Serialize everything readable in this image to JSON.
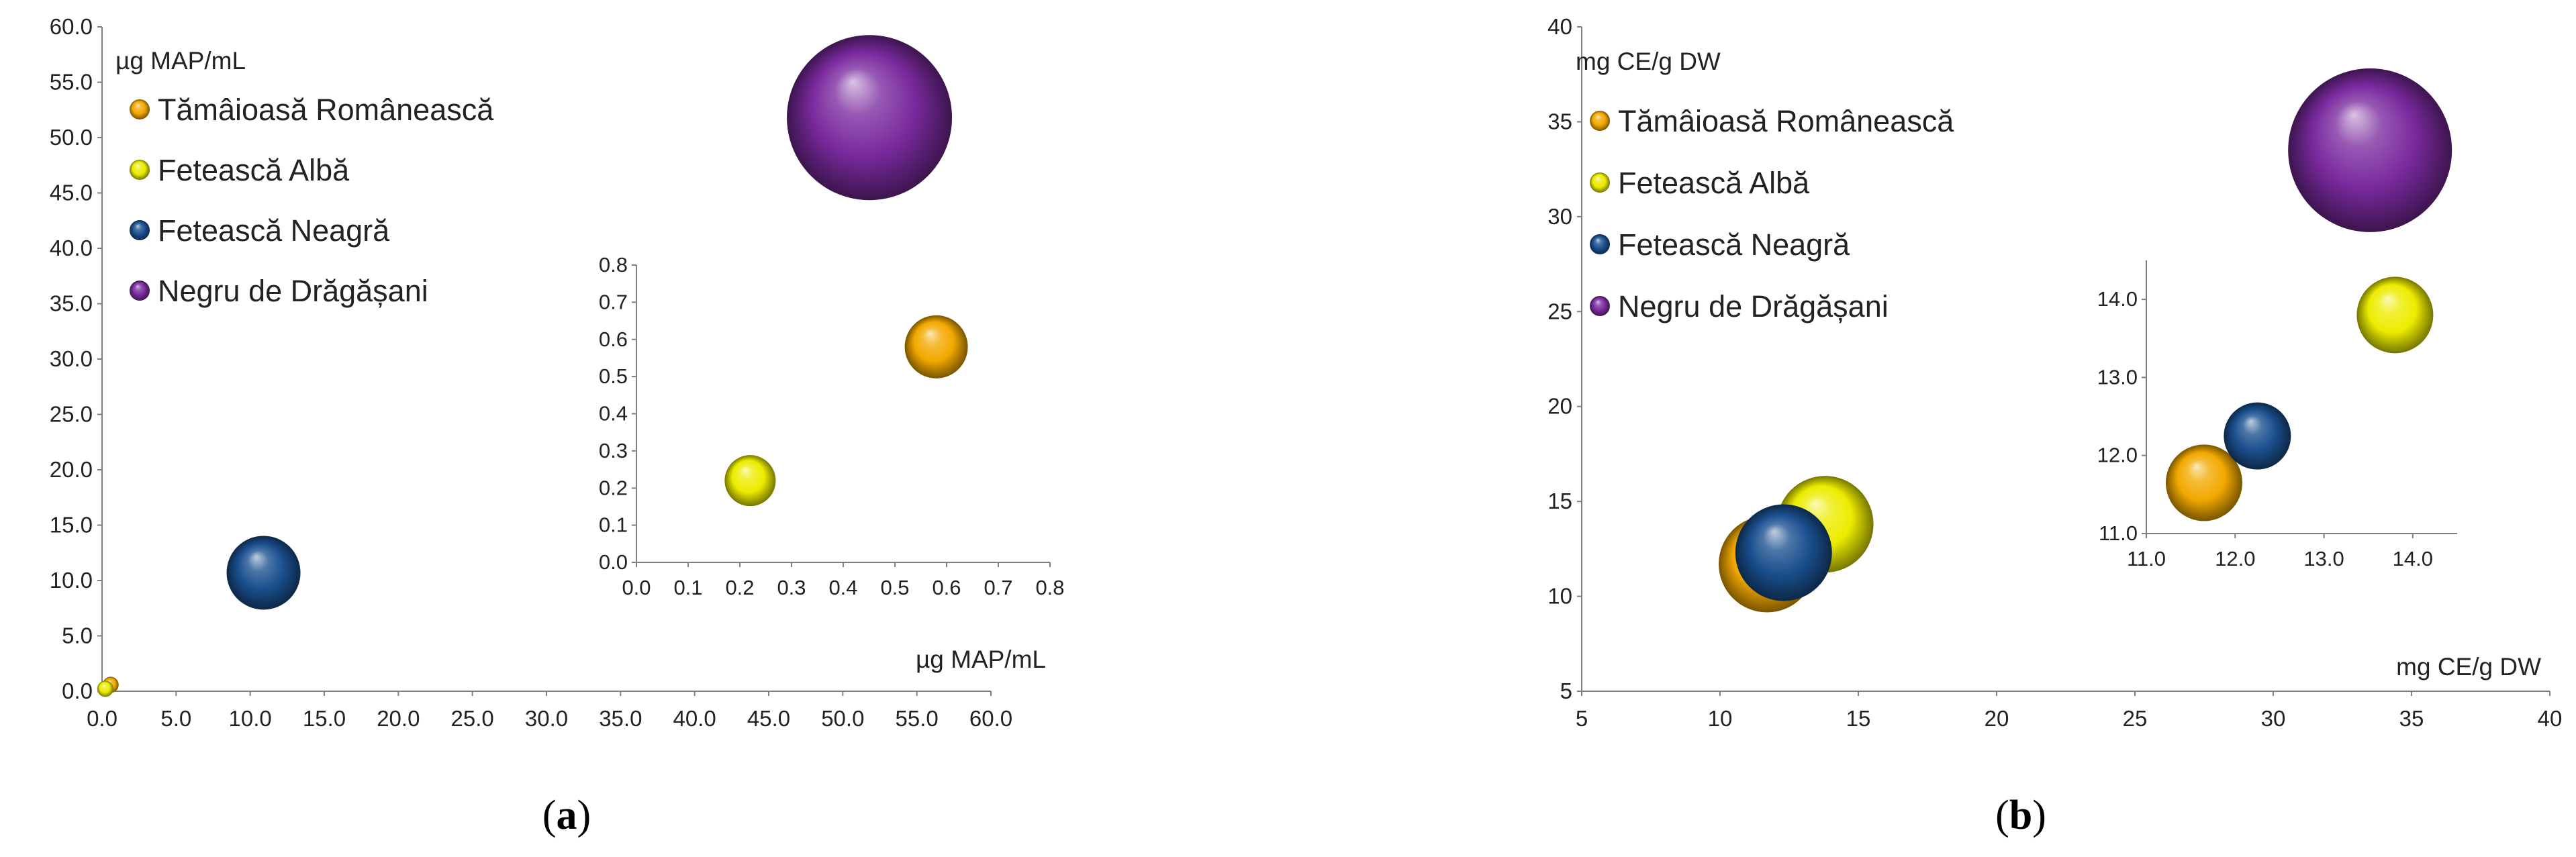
{
  "colors": {
    "Tămâioasă Românească": "#f2a900",
    "Fetească Albă": "#ecec00",
    "Fetească Neagră": "#1a4f8e",
    "Negru de Drăgășani": "#7a2a9e",
    "axis": "#7f7f7f",
    "text": "#222222"
  },
  "chart_data": [
    {
      "panel": "a",
      "type": "scatter",
      "subtype": "bubble",
      "title": "",
      "ylabel": "µg MAP/mL",
      "xlabel": "µg MAP/mL",
      "xlim": [
        0,
        60
      ],
      "ylim": [
        0,
        60
      ],
      "xticks": [
        "0.0",
        "5.0",
        "10.0",
        "15.0",
        "20.0",
        "25.0",
        "30.0",
        "35.0",
        "40.0",
        "45.0",
        "50.0",
        "55.0",
        "60.0"
      ],
      "yticks": [
        "0.0",
        "5.0",
        "10.0",
        "15.0",
        "20.0",
        "25.0",
        "30.0",
        "35.0",
        "40.0",
        "45.0",
        "50.0",
        "55.0",
        "60.0"
      ],
      "legend": {
        "position": "top-left",
        "entries": [
          "Tămâioasă Românească",
          "Fetească Albă",
          "Fetească Neagră",
          "Negru de Drăgășani"
        ]
      },
      "series": [
        {
          "name": "Tămâioasă Românească",
          "x": 0.58,
          "y": 0.58
        },
        {
          "name": "Fetească Albă",
          "x": 0.22,
          "y": 0.22
        },
        {
          "name": "Fetească Neagră",
          "x": 10.9,
          "y": 10.7
        },
        {
          "name": "Negru de Drăgășani",
          "x": 51.8,
          "y": 51.8
        }
      ],
      "inset": {
        "xlim": [
          0,
          0.8
        ],
        "ylim": [
          0,
          0.8
        ],
        "xticks": [
          "0.0",
          "0.1",
          "0.2",
          "0.3",
          "0.4",
          "0.5",
          "0.6",
          "0.7",
          "0.8"
        ],
        "yticks": [
          "0.0",
          "0.1",
          "0.2",
          "0.3",
          "0.4",
          "0.5",
          "0.6",
          "0.7",
          "0.8"
        ],
        "series": [
          {
            "name": "Tămâioasă Românească",
            "x": 0.58,
            "y": 0.58
          },
          {
            "name": "Fetească Albă",
            "x": 0.22,
            "y": 0.22
          }
        ]
      }
    },
    {
      "panel": "b",
      "type": "scatter",
      "subtype": "bubble",
      "title": "",
      "ylabel": "mg CE/g DW",
      "xlabel": "mg CE/g DW",
      "xlim": [
        5,
        40
      ],
      "ylim": [
        5,
        40
      ],
      "xticks": [
        "5",
        "10",
        "15",
        "20",
        "25",
        "30",
        "35",
        "40"
      ],
      "yticks": [
        "5",
        "10",
        "15",
        "20",
        "25",
        "30",
        "35",
        "40"
      ],
      "legend": {
        "position": "top-left",
        "entries": [
          "Tămâioasă Românească",
          "Fetească Albă",
          "Fetească Neagră",
          "Negru de Drăgășani"
        ]
      },
      "series": [
        {
          "name": "Tămâioasă Românească",
          "x": 11.7,
          "y": 11.7
        },
        {
          "name": "Fetească Albă",
          "x": 13.8,
          "y": 13.8
        },
        {
          "name": "Fetească Neagră",
          "x": 12.3,
          "y": 12.3
        },
        {
          "name": "Negru de Drăgășani",
          "x": 33.5,
          "y": 33.5
        }
      ],
      "inset": {
        "xlim": [
          11.0,
          14.5
        ],
        "ylim": [
          11.0,
          14.5
        ],
        "xticks": [
          "11.0",
          "12.0",
          "13.0",
          "14.0"
        ],
        "yticks": [
          "11.0",
          "12.0",
          "13.0",
          "14.0"
        ],
        "series": [
          {
            "name": "Tămâioasă Românească",
            "x": 11.65,
            "y": 11.65
          },
          {
            "name": "Fetească Albă",
            "x": 13.8,
            "y": 13.8
          },
          {
            "name": "Fetească Neagră",
            "x": 12.25,
            "y": 12.25
          }
        ]
      }
    }
  ],
  "captions": {
    "a": {
      "open": "(",
      "letter": "a",
      "close": ")"
    },
    "b": {
      "open": "(",
      "letter": "b",
      "close": ")"
    }
  }
}
